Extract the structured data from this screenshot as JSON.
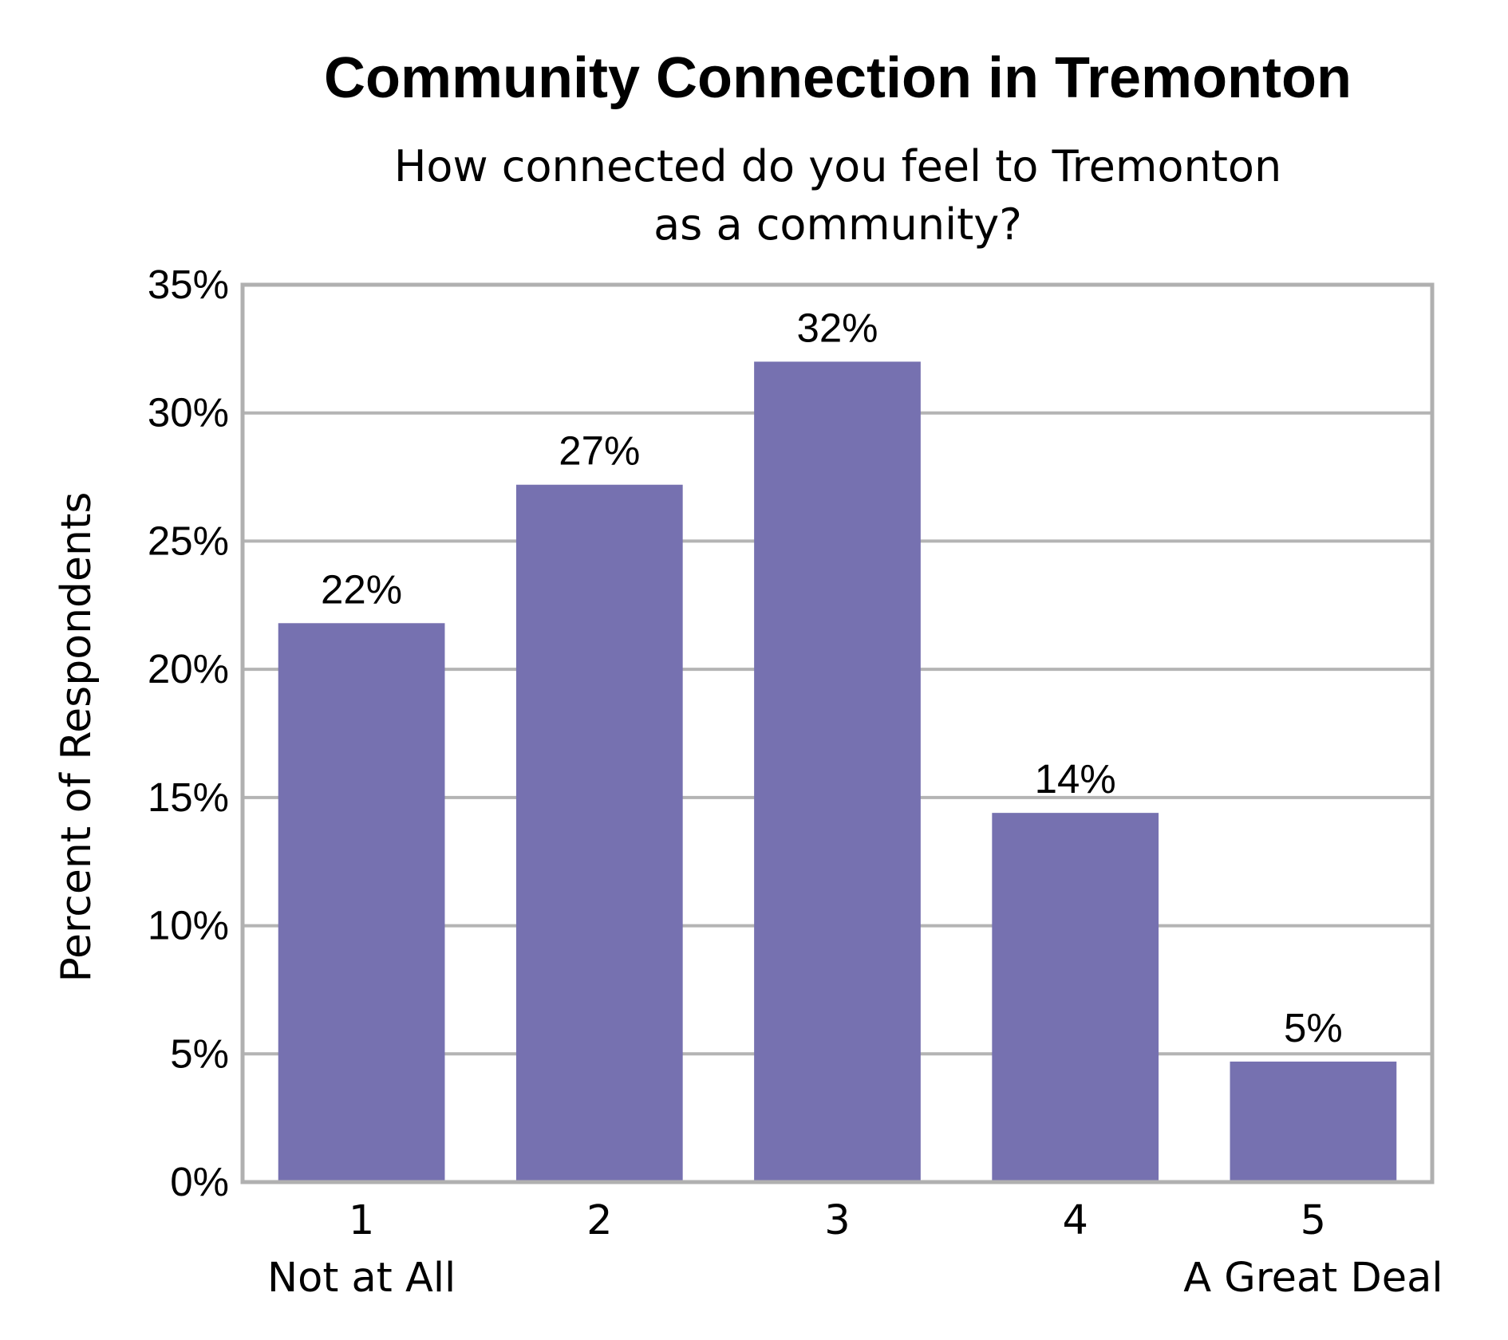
{
  "chart_data": {
    "type": "bar",
    "title": "Community Connection in Tremonton",
    "subtitle_lines": [
      "How connected do you feel to Tremonton",
      "as a community?"
    ],
    "ylabel": "Percent of Respondents",
    "xlabel": "",
    "categories": [
      "1",
      "2",
      "3",
      "4",
      "5"
    ],
    "category_sublabels": [
      "Not at All",
      "",
      "",
      "",
      "A Great Deal"
    ],
    "values": [
      21.8,
      27.2,
      32.0,
      14.4,
      4.7
    ],
    "data_labels": [
      "22%",
      "27%",
      "32%",
      "14%",
      "5%"
    ],
    "ylim": [
      0,
      35
    ],
    "yticks": [
      0,
      5,
      10,
      15,
      20,
      25,
      30,
      35
    ],
    "ytick_labels": [
      "0%",
      "5%",
      "10%",
      "15%",
      "20%",
      "25%",
      "30%",
      "35%"
    ],
    "grid": true,
    "colors": {
      "bar": "#7671b0",
      "grid": "#b4b4b4",
      "frame": "#b0b0b0"
    }
  }
}
